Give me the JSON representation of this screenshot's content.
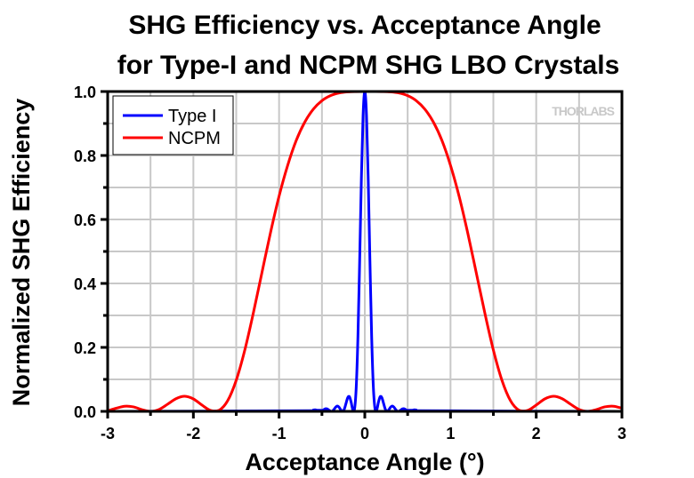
{
  "chart_data": {
    "type": "line",
    "title": [
      "SHG Efficiency vs. Acceptance Angle",
      "for Type-I and NCPM SHG LBO Crystals"
    ],
    "xlabel": "Acceptance Angle (°)",
    "ylabel": "Normalized SHG Efficiency",
    "xlim": [
      -3,
      3
    ],
    "ylim": [
      0,
      1.0
    ],
    "xticks": [
      "-3",
      "-2",
      "-1",
      "0",
      "1",
      "2",
      "3"
    ],
    "yticks": [
      "0.0",
      "0.2",
      "0.4",
      "0.6",
      "0.8",
      "1.0"
    ],
    "grid": true,
    "legend_position": "top-left",
    "watermark": "THORLABS",
    "series": [
      {
        "name": "Type I",
        "color": "#0000ff",
        "x": [
          -3,
          -0.62,
          -0.6,
          -0.58,
          -0.56,
          -0.54,
          -0.52,
          -0.5,
          -0.48,
          -0.46,
          -0.44,
          -0.42,
          -0.4,
          -0.38,
          -0.36,
          -0.34,
          -0.32,
          -0.3,
          -0.28,
          -0.26,
          -0.24,
          -0.22,
          -0.2,
          -0.18,
          -0.16,
          -0.14,
          -0.12,
          -0.1,
          -0.08,
          -0.06,
          -0.04,
          -0.02,
          0,
          0.02,
          0.04,
          0.06,
          0.08,
          0.1,
          0.12,
          0.14,
          0.16,
          0.18,
          0.2,
          0.22,
          0.24,
          0.26,
          0.28,
          0.3,
          0.32,
          0.34,
          0.36,
          0.38,
          0.4,
          0.42,
          0.44,
          0.46,
          0.48,
          0.5,
          0.52,
          0.54,
          0.56,
          0.58,
          0.6,
          0.62,
          3
        ],
        "y": [
          0,
          0.002,
          0.0042,
          0.005,
          0.0037,
          0.0013,
          0,
          0.0015,
          0.005,
          0.008,
          0.0077,
          0.0043,
          0.0006,
          0.0007,
          0.0058,
          0.013,
          0.0165,
          0.0129,
          0.0047,
          0,
          0.0064,
          0.024,
          0.0422,
          0.0462,
          0.0294,
          0.005,
          0.0068,
          0.0753,
          0.2339,
          0.4687,
          0.7249,
          0.9245,
          1.0,
          0.9245,
          0.7249,
          0.4687,
          0.2339,
          0.0753,
          0.0068,
          0.005,
          0.0294,
          0.0462,
          0.0422,
          0.024,
          0.0064,
          0,
          0.0047,
          0.0129,
          0.0165,
          0.013,
          0.0058,
          0.0007,
          0.0006,
          0.0043,
          0.0077,
          0.008,
          0.005,
          0.0015,
          0,
          0.0013,
          0.0037,
          0.005,
          0.0042,
          0.002,
          0
        ]
      },
      {
        "name": "NCPM",
        "color": "#ff0000",
        "x": [
          -3,
          -2.9,
          -2.8,
          -2.7,
          -2.6,
          -2.5,
          -2.4,
          -2.3,
          -2.2,
          -2.1,
          -2,
          -1.9,
          -1.8,
          -1.7,
          -1.6,
          -1.5,
          -1.4,
          -1.3,
          -1.2,
          -1.1,
          -1,
          -0.9,
          -0.8,
          -0.7,
          -0.6,
          -0.5,
          -0.4,
          -0.3,
          -0.2,
          -0.1,
          0,
          0.1,
          0.2,
          0.3,
          0.4,
          0.5,
          0.6,
          0.7,
          0.8,
          0.9,
          1,
          1.1,
          1.2,
          1.3,
          1.4,
          1.5,
          1.6,
          1.7,
          1.8,
          1.9,
          2,
          2.1,
          2.2,
          2.3,
          2.4,
          2.5,
          2.6,
          2.7,
          2.8,
          2.9,
          3
        ],
        "y": [
          0.0019,
          0.0098,
          0.0161,
          0.014,
          0.0054,
          0,
          0.0059,
          0.0225,
          0.0399,
          0.0471,
          0.0389,
          0.0197,
          0.0028,
          0.0033,
          0.0332,
          0.0972,
          0.1916,
          0.308,
          0.434,
          0.559,
          0.673,
          0.769,
          0.847,
          0.9045,
          0.945,
          0.9715,
          0.9872,
          0.9953,
          0.9988,
          0.9998,
          1.0,
          1.0,
          0.9998,
          0.9988,
          0.9953,
          0.9872,
          0.9715,
          0.945,
          0.9045,
          0.847,
          0.769,
          0.673,
          0.559,
          0.434,
          0.308,
          0.1916,
          0.0972,
          0.0332,
          0.0033,
          0.0028,
          0.0197,
          0.0389,
          0.0471,
          0.0399,
          0.0225,
          0.0059,
          0,
          0.0054,
          0.014,
          0.0161,
          0.0098
        ]
      }
    ]
  }
}
